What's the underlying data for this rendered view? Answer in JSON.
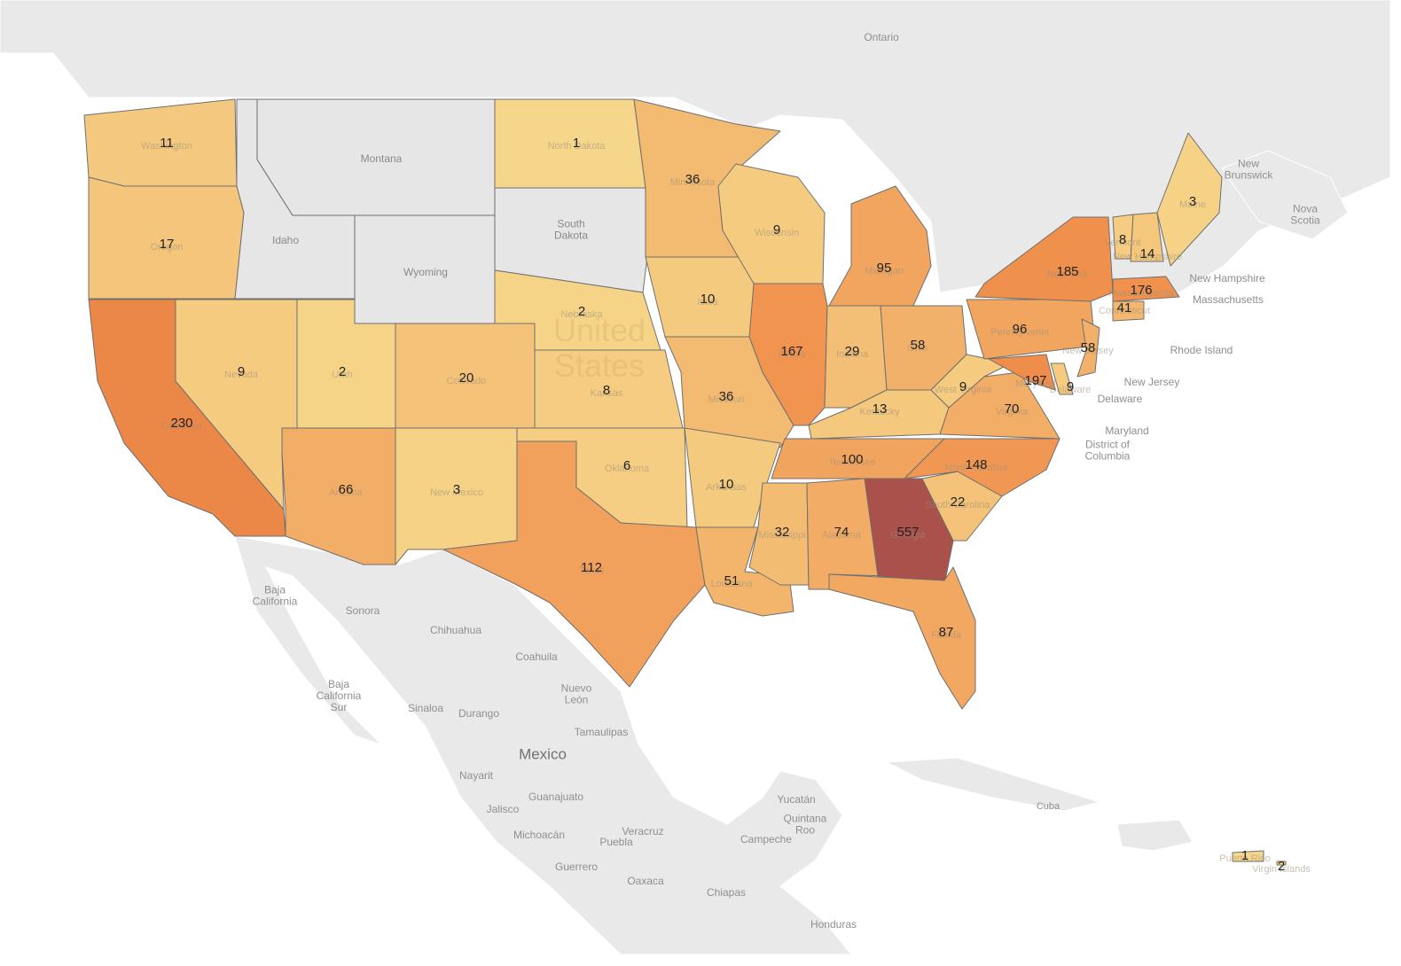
{
  "map": {
    "states": [
      {
        "name": "Washington",
        "value": 11
      },
      {
        "name": "Oregon",
        "value": 17
      },
      {
        "name": "California",
        "value": 230
      },
      {
        "name": "Nevada",
        "value": 9
      },
      {
        "name": "Idaho"
      },
      {
        "name": "Montana"
      },
      {
        "name": "Wyoming"
      },
      {
        "name": "Utah",
        "value": 2
      },
      {
        "name": "Arizona",
        "value": 66
      },
      {
        "name": "Colorado",
        "value": 20
      },
      {
        "name": "New Mexico",
        "value": 3
      },
      {
        "name": "North Dakota",
        "value": 1
      },
      {
        "name": "South\nDakota"
      },
      {
        "name": "Nebraska",
        "value": 2
      },
      {
        "name": "Kansas",
        "value": 8
      },
      {
        "name": "Oklahoma",
        "value": 6
      },
      {
        "name": "Texas",
        "value": 112
      },
      {
        "name": "Minnesota",
        "value": 36
      },
      {
        "name": "Iowa",
        "value": 10
      },
      {
        "name": "Missouri",
        "value": 36
      },
      {
        "name": "Arkansas",
        "value": 10
      },
      {
        "name": "Louisiana",
        "value": 51
      },
      {
        "name": "Wisconsin",
        "value": 9
      },
      {
        "name": "Illinois",
        "value": 167
      },
      {
        "name": "Michigan",
        "value": 95
      },
      {
        "name": "Indiana",
        "value": 29
      },
      {
        "name": "Ohio",
        "value": 58
      },
      {
        "name": "Kentucky",
        "value": 13
      },
      {
        "name": "Tennessee",
        "value": 100
      },
      {
        "name": "Mississippi",
        "value": 32
      },
      {
        "name": "Alabama",
        "value": 74
      },
      {
        "name": "Georgia",
        "value": 557
      },
      {
        "name": "Florida",
        "value": 87
      },
      {
        "name": "South Carolina",
        "value": 22
      },
      {
        "name": "North Carolina",
        "value": 148
      },
      {
        "name": "Virginia",
        "value": 70
      },
      {
        "name": "West Virginia",
        "value": 9
      },
      {
        "name": "Pennsylvania",
        "value": 96
      },
      {
        "name": "New York",
        "value": 185
      },
      {
        "name": "Maryland",
        "value": 197
      },
      {
        "name": "Delaware",
        "value": 9
      },
      {
        "name": "New Jersey",
        "value": 58
      },
      {
        "name": "Vermont",
        "value": 8
      },
      {
        "name": "New Hampshire",
        "value": 14
      },
      {
        "name": "Maine",
        "value": 3
      },
      {
        "name": "Massachusetts",
        "value": 176
      },
      {
        "name": "Connecticut",
        "value": 41
      },
      {
        "name": "Puerto Rico",
        "value": 1
      },
      {
        "name": "Virgin Islands",
        "value": 2
      }
    ],
    "places": [
      "United\nStates",
      "Ontario",
      "New\nBrunswick",
      "Nova\nScotia",
      "New Hampshire",
      "Massachusetts",
      "Rhode Island",
      "New Jersey",
      "Delaware",
      "Maryland",
      "District of\nColumbia",
      "Baja\nCalifornia",
      "Sonora",
      "Chihuahua",
      "Coahuila",
      "Nuevo\nLeón",
      "Baja\nCalifornia\nSur",
      "Sinaloa",
      "Durango",
      "Tamaulipas",
      "Mexico",
      "Nayarit",
      "Jalisco",
      "Guanajuato",
      "Michoacán",
      "Veracruz",
      "Puebla",
      "Guerrero",
      "Oaxaca",
      "Chiapas",
      "Campeche",
      "Yucatán",
      "Quintana\nRoo",
      "Honduras",
      "Cuba"
    ]
  }
}
